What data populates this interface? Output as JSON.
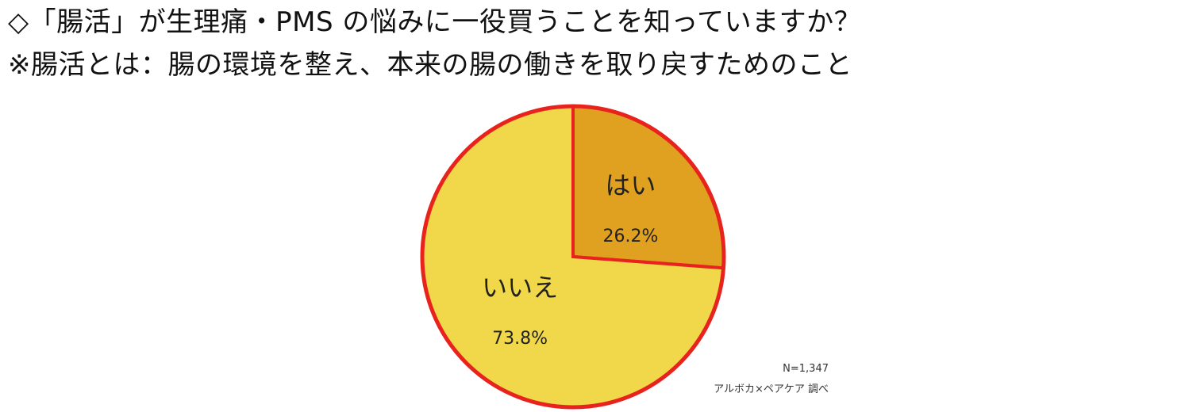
{
  "heading": {
    "question": "◇「腸活」が生理痛・PMS の悩みに一役買うことを知っていますか？",
    "definition": "※腸活とは：腸の環境を整え、本来の腸の働きを取り戻すためのこと"
  },
  "chart_data": {
    "type": "pie",
    "categories": [
      "はい",
      "いいえ"
    ],
    "values": [
      26.2,
      73.8
    ],
    "value_labels": [
      "26.2%",
      "73.8%"
    ],
    "colors": [
      "#E0A020",
      "#F0D84A"
    ],
    "border_color": "#E8231E",
    "start": "12 o'clock",
    "direction": "clockwise",
    "sample_size": "N=1,347",
    "source": "アルボカ×ペアケア 調べ"
  }
}
